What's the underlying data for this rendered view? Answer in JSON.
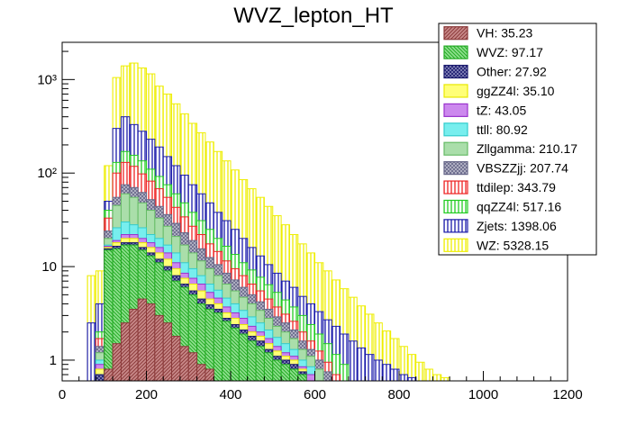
{
  "chart_data": {
    "type": "bar",
    "title": "WVZ_lepton_HT",
    "xlabel": "",
    "ylabel": "",
    "stacked": true,
    "yscale": "log",
    "xlim": [
      0,
      1200
    ],
    "ylim": [
      0.6,
      2500
    ],
    "bin_width": 20,
    "bin_low_edges": [
      40,
      60,
      80,
      100,
      120,
      140,
      160,
      180,
      200,
      220,
      240,
      260,
      280,
      300,
      320,
      340,
      360,
      380,
      400,
      420,
      440,
      460,
      480,
      500,
      520,
      540,
      560,
      580,
      600,
      620,
      640,
      660,
      680,
      700,
      720,
      740,
      760,
      780,
      800,
      820,
      840,
      860,
      880,
      900,
      920,
      940,
      960,
      980,
      1000,
      1020,
      1040,
      1060,
      1080,
      1100,
      1120
    ],
    "x_ticks": [
      0,
      200,
      400,
      600,
      800,
      1000,
      1200
    ],
    "y_ticks": [
      {
        "value": 1,
        "label": "1"
      },
      {
        "value": 10,
        "label": "10"
      },
      {
        "value": 100,
        "label": "10²"
      },
      {
        "value": 1000,
        "label": "10³"
      }
    ],
    "grid": false,
    "legend_position": "top-right",
    "stack_order": [
      "VH",
      "WVZ",
      "Other",
      "ggZZ4l",
      "tZ",
      "ttll",
      "Zllgamma",
      "VBSZZjj",
      "ttdilep",
      "qqZZ4l",
      "Zjets",
      "WZ"
    ],
    "cumulative_totals": {
      "VH": [
        0,
        0,
        0,
        0.8,
        1.5,
        2.5,
        3.5,
        4.5,
        4.0,
        3.0,
        2.5,
        1.8,
        1.4,
        1.2,
        0.9,
        0.8,
        0.6,
        0.5,
        0,
        0,
        0,
        0,
        0,
        0,
        0,
        0,
        0,
        0,
        0,
        0,
        0,
        0,
        0,
        0,
        0,
        0,
        0,
        0,
        0,
        0,
        0,
        0,
        0,
        0,
        0,
        0,
        0,
        0,
        0,
        0,
        0,
        0,
        0,
        0,
        0
      ],
      "WVZ": [
        0,
        0,
        0.6,
        15,
        15.5,
        17,
        17,
        15,
        13,
        11,
        9,
        7,
        6,
        5,
        4,
        3.5,
        3.2,
        2.6,
        2.2,
        1.9,
        1.6,
        1.4,
        1.2,
        1.0,
        0.9,
        0.8,
        0.7,
        0,
        0,
        0,
        0,
        0,
        0,
        0,
        0,
        0,
        0,
        0,
        0,
        0,
        0,
        0,
        0,
        0,
        0,
        0,
        0,
        0,
        0,
        0,
        0,
        0,
        0,
        0,
        0
      ],
      "Other": [
        0,
        0,
        0.7,
        15.5,
        16.5,
        18,
        18,
        16,
        14,
        12,
        10,
        8,
        6.5,
        5.5,
        4.5,
        3.9,
        3.5,
        2.8,
        2.4,
        2.1,
        1.8,
        1.6,
        1.3,
        1.1,
        1.0,
        0.9,
        0.75,
        0,
        0,
        0,
        0,
        0,
        0,
        0,
        0,
        0,
        0,
        0,
        0,
        0,
        0,
        0,
        0,
        0,
        0,
        0,
        0,
        0,
        0,
        0,
        0,
        0,
        0,
        0,
        0
      ],
      "ggZZ4l": [
        0,
        0,
        0.8,
        16,
        18,
        20,
        20,
        18,
        16,
        14,
        12,
        9.5,
        7.5,
        6.5,
        5.5,
        4.5,
        4.0,
        3.2,
        2.8,
        2.4,
        2.0,
        1.8,
        1.5,
        1.25,
        1.1,
        1.0,
        0.8,
        0,
        0,
        0,
        0,
        0,
        0,
        0,
        0,
        0,
        0,
        0,
        0,
        0,
        0,
        0,
        0,
        0,
        0,
        0,
        0,
        0,
        0,
        0,
        0,
        0,
        0,
        0,
        0
      ],
      "tZ": [
        0,
        0,
        0.9,
        16.5,
        19,
        22,
        22,
        20,
        18,
        16,
        14,
        11,
        8.5,
        7.5,
        6.5,
        5.3,
        4.6,
        3.7,
        3.2,
        2.8,
        2.3,
        2.0,
        1.7,
        1.4,
        1.2,
        1.1,
        0.85,
        0.7,
        0,
        0,
        0,
        0,
        0,
        0,
        0,
        0,
        0,
        0,
        0,
        0,
        0,
        0,
        0,
        0,
        0,
        0,
        0,
        0,
        0,
        0,
        0,
        0,
        0,
        0,
        0
      ],
      "ttll": [
        0,
        0,
        1.0,
        17,
        26,
        30,
        28,
        26,
        22,
        20,
        17,
        14,
        11,
        9.5,
        8.0,
        6.5,
        5.6,
        4.6,
        4.0,
        3.4,
        2.9,
        2.5,
        2.1,
        1.75,
        1.5,
        1.3,
        1.0,
        0.85,
        0,
        0,
        0,
        0,
        0,
        0,
        0,
        0,
        0,
        0,
        0,
        0,
        0,
        0,
        0,
        0,
        0,
        0,
        0,
        0,
        0,
        0,
        0,
        0,
        0,
        0,
        0
      ],
      "Zllgamma": [
        0,
        0,
        1.2,
        20,
        45,
        60,
        55,
        48,
        40,
        33,
        27,
        21,
        17,
        14,
        11.5,
        9.5,
        8.0,
        6.5,
        5.5,
        4.7,
        4.0,
        3.4,
        2.8,
        2.3,
        2.0,
        1.7,
        1.3,
        1.1,
        0.8,
        0,
        0,
        0,
        0,
        0,
        0,
        0,
        0,
        0,
        0,
        0,
        0,
        0,
        0,
        0,
        0,
        0,
        0,
        0,
        0,
        0,
        0,
        0,
        0,
        0,
        0
      ],
      "VBSZZjj": [
        0,
        0,
        1.4,
        24,
        55,
        75,
        70,
        62,
        52,
        44,
        36,
        29,
        23,
        19,
        15.5,
        12.5,
        10.5,
        8.5,
        7.2,
        6.0,
        5.0,
        4.2,
        3.5,
        2.9,
        2.5,
        2.1,
        1.6,
        1.3,
        1.0,
        0.75,
        0,
        0,
        0,
        0,
        0,
        0,
        0,
        0,
        0,
        0,
        0,
        0,
        0,
        0,
        0,
        0,
        0,
        0,
        0,
        0,
        0,
        0,
        0,
        0,
        0
      ],
      "ttdilep": [
        0,
        0,
        1.7,
        33,
        100,
        130,
        118,
        98,
        82,
        68,
        55,
        43,
        34,
        27,
        22,
        17.5,
        14.5,
        11.5,
        9.5,
        8.0,
        6.5,
        5.5,
        4.5,
        3.7,
        3.1,
        2.6,
        2.0,
        1.6,
        1.25,
        0.95,
        0.7,
        0,
        0,
        0,
        0,
        0,
        0,
        0,
        0,
        0,
        0,
        0,
        0,
        0,
        0,
        0,
        0,
        0,
        0,
        0,
        0,
        0,
        0,
        0,
        0
      ],
      "qqZZ4l": [
        0,
        0,
        2.0,
        40,
        130,
        170,
        155,
        135,
        110,
        92,
        75,
        60,
        48,
        38,
        31,
        25,
        20,
        16.5,
        13.5,
        11,
        9.2,
        7.7,
        6.4,
        5.3,
        4.4,
        3.7,
        3.0,
        2.4,
        1.9,
        1.5,
        1.15,
        0.9,
        0,
        0,
        0,
        0,
        0,
        0,
        0,
        0,
        0,
        0,
        0,
        0,
        0,
        0,
        0,
        0,
        0,
        0,
        0,
        0,
        0,
        0,
        0
      ],
      "Zjets": [
        0,
        2.5,
        4,
        50,
        300,
        400,
        330,
        280,
        230,
        190,
        150,
        120,
        95,
        75,
        60,
        48,
        38,
        31,
        25,
        20,
        16,
        13,
        10.5,
        8.5,
        7,
        6,
        4.8,
        4.0,
        3.3,
        2.7,
        2.3,
        1.9,
        1.6,
        1.35,
        1.15,
        1.0,
        0.9,
        0.8,
        0.7,
        0.65,
        0,
        0,
        0,
        0,
        0,
        0,
        0,
        0,
        0,
        0,
        0,
        0,
        0,
        0,
        0
      ],
      "WZ": [
        0,
        8,
        9,
        120,
        1050,
        1400,
        1500,
        1330,
        1150,
        850,
        700,
        550,
        430,
        340,
        270,
        215,
        170,
        135,
        108,
        85,
        68,
        55,
        44,
        35,
        28,
        22,
        17.5,
        14,
        11,
        9,
        7.2,
        5.8,
        4.7,
        3.8,
        3.1,
        2.5,
        2.05,
        1.7,
        1.4,
        1.15,
        0.95,
        0.8,
        0.7,
        0.65,
        0,
        0,
        0,
        0,
        0,
        0,
        0,
        0,
        0,
        0,
        0
      ]
    },
    "series": [
      {
        "name": "VH",
        "legend_label": "VH: 35.23",
        "color": "#8b3a3a",
        "pattern": "hatch-diag",
        "bg": "#c98a8a"
      },
      {
        "name": "WVZ",
        "legend_label": "WVZ: 97.17",
        "color": "#22aa22",
        "pattern": "hatch-diag2",
        "bg": "#8fe08f"
      },
      {
        "name": "Other",
        "legend_label": "Other: 27.92",
        "color": "#1a1a6e",
        "pattern": "crosshatch",
        "bg": "#9090c0"
      },
      {
        "name": "ggZZ4l",
        "legend_label": "ggZZ4l: 35.10",
        "color": "#e8e800",
        "pattern": "solid",
        "bg": "#ffff77"
      },
      {
        "name": "tZ",
        "legend_label": "tZ: 43.05",
        "color": "#9933cc",
        "pattern": "solid",
        "bg": "#cc88ee"
      },
      {
        "name": "ttll",
        "legend_label": "ttll: 80.92",
        "color": "#33cccc",
        "pattern": "solid",
        "bg": "#77eeee"
      },
      {
        "name": "Zllgamma",
        "legend_label": "Zllgamma: 210.17",
        "color": "#66bb66",
        "pattern": "solid",
        "bg": "#aadeaa"
      },
      {
        "name": "VBSZZjj",
        "legend_label": "VBSZZjj: 207.74",
        "color": "#666688",
        "pattern": "crosshatch",
        "bg": "#c0c0d0"
      },
      {
        "name": "ttdilep",
        "legend_label": "ttdilep: 343.79",
        "color": "#ee2222",
        "pattern": "vlines",
        "bg": "#ffffff"
      },
      {
        "name": "qqZZ4l",
        "legend_label": "qqZZ4l: 517.16",
        "color": "#22cc22",
        "pattern": "vlines",
        "bg": "#ffffff"
      },
      {
        "name": "Zjets",
        "legend_label": "Zjets: 1398.06",
        "color": "#1a1aaa",
        "pattern": "vlines",
        "bg": "#ffffff"
      },
      {
        "name": "WZ",
        "legend_label": "WZ: 5328.15",
        "color": "#eeee00",
        "pattern": "vlines",
        "bg": "#ffffff"
      }
    ]
  }
}
